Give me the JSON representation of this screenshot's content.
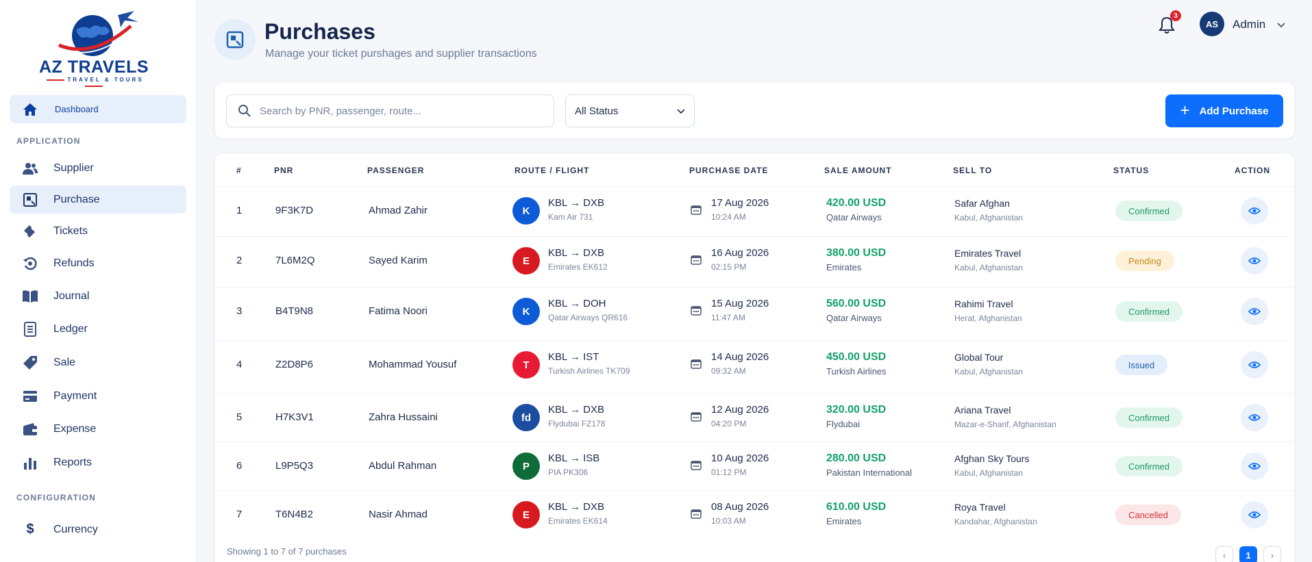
{
  "brand": {
    "name": "AZ TRAVELS",
    "tagline": "TRAVEL & TOURS"
  },
  "sidebar": {
    "dashboard": {
      "label": "Dashboard",
      "icon": "home-icon"
    },
    "section_application": "APPLICATION",
    "items": [
      {
        "label": "Supplier",
        "icon": "users-icon"
      },
      {
        "label": "Purchase",
        "icon": "purchase-icon",
        "active": true
      },
      {
        "label": "Tickets",
        "icon": "ticket-icon"
      },
      {
        "label": "Refunds",
        "icon": "refund-icon"
      },
      {
        "label": "Journal",
        "icon": "book-icon"
      },
      {
        "label": "Ledger",
        "icon": "ledger-icon"
      },
      {
        "label": "Sale",
        "icon": "tag-icon"
      },
      {
        "label": "Payment",
        "icon": "card-icon"
      },
      {
        "label": "Expense",
        "icon": "wallet-icon"
      },
      {
        "label": "Reports",
        "icon": "bar-chart-icon"
      }
    ],
    "section_configuration": "CONFIGURATION",
    "config_items": [
      {
        "label": "Currency",
        "icon": "dollar-icon"
      }
    ]
  },
  "header": {
    "title": "Purchases",
    "subtitle": "Manage your ticket purshages and supplier transactions",
    "notifications_count": "3",
    "user": {
      "initials": "AS",
      "name": "Admin"
    }
  },
  "filters": {
    "search_placeholder": "Search by PNR, passenger, route...",
    "status_value": "All Status",
    "add_label": "Add Purchase"
  },
  "table": {
    "columns": [
      "#",
      "PNR",
      "PASSENGER",
      "ROUTE / FLIGHT",
      "PURCHASE DATE",
      "SALE AMOUNT",
      "SELL TO",
      "STATUS",
      "ACTION"
    ],
    "rows": [
      {
        "num": "1",
        "pnr": "9F3K7D",
        "passenger": "Ahmad Zahir",
        "route": "KBL → DXB",
        "flight": "Kam Air 731",
        "date": "17 Aug 2026",
        "time": "10:24 AM",
        "amount": "420.00 USD",
        "airline": "Qatar Airways",
        "sell_to": "Safar Afghan",
        "location": "Kabul, Afghanistan",
        "status": "Confirmed",
        "logo_color": "#0d5bd7",
        "logo_text": "K"
      },
      {
        "num": "2",
        "pnr": "7L6M2Q",
        "passenger": "Sayed Karim",
        "route": "KBL → DXB",
        "flight": "Emirates EK612",
        "date": "16 Aug 2026",
        "time": "02:15 PM",
        "amount": "380.00 USD",
        "airline": "Emirates",
        "sell_to": "Emirates Travel",
        "location": "Kabul, Afghanistan",
        "status": "Pending",
        "logo_color": "#d71920",
        "logo_text": "E"
      },
      {
        "num": "3",
        "pnr": "B4T9N8",
        "passenger": "Fatima Noori",
        "route": "KBL → DOH",
        "flight": "Qatar Airways QR616",
        "date": "15 Aug 2026",
        "time": "11:47 AM",
        "amount": "560.00 USD",
        "airline": "Qatar Airways",
        "sell_to": "Rahimi Travel",
        "location": "Herat, Afghanistan",
        "status": "Confirmed",
        "logo_color": "#0d5bd7",
        "logo_text": "K"
      },
      {
        "num": "4",
        "pnr": "Z2D8P6",
        "passenger": "Mohammad Yousuf",
        "route": "KBL → IST",
        "flight": "Turkish Airlines TK709",
        "date": "14 Aug 2026",
        "time": "09:32 AM",
        "amount": "450.00 USD",
        "airline": "Turkish Airlines",
        "sell_to": "Global Tour",
        "location": "Kabul, Afghanistan",
        "status": "Issued",
        "logo_color": "#e81932",
        "logo_text": "T"
      },
      {
        "num": "5",
        "pnr": "H7K3V1",
        "passenger": "Zahra Hussaini",
        "route": "KBL → DXB",
        "flight": "Flydubai FZ178",
        "date": "12 Aug 2026",
        "time": "04:20 PM",
        "amount": "320.00 USD",
        "airline": "Flydubai",
        "sell_to": "Ariana Travel",
        "location": "Mazar-e-Sharif, Afghanistan",
        "status": "Confirmed",
        "logo_color": "#1c4da1",
        "logo_text": "fd"
      },
      {
        "num": "6",
        "pnr": "L9P5Q3",
        "passenger": "Abdul Rahman",
        "route": "KBL → ISB",
        "flight": "PIA PK306",
        "date": "10 Aug 2026",
        "time": "01:12 PM",
        "amount": "280.00 USD",
        "airline": "Pakistan International",
        "sell_to": "Afghan Sky Tours",
        "location": "Kabul, Afghanistan",
        "status": "Confirmed",
        "logo_color": "#0f6b3a",
        "logo_text": "P"
      },
      {
        "num": "7",
        "pnr": "T6N4B2",
        "passenger": "Nasir Ahmad",
        "route": "KBL → DXB",
        "flight": "Emirates EK614",
        "date": "08 Aug 2026",
        "time": "10:03 AM",
        "amount": "610.00 USD",
        "airline": "Emirates",
        "sell_to": "Roya Travel",
        "location": "Kandahar, Afghanistan",
        "status": "Cancelled",
        "logo_color": "#d71920",
        "logo_text": "E"
      }
    ]
  },
  "footer": {
    "showing": "Showing 1 to 7 of 7 purchases",
    "page": "1"
  }
}
